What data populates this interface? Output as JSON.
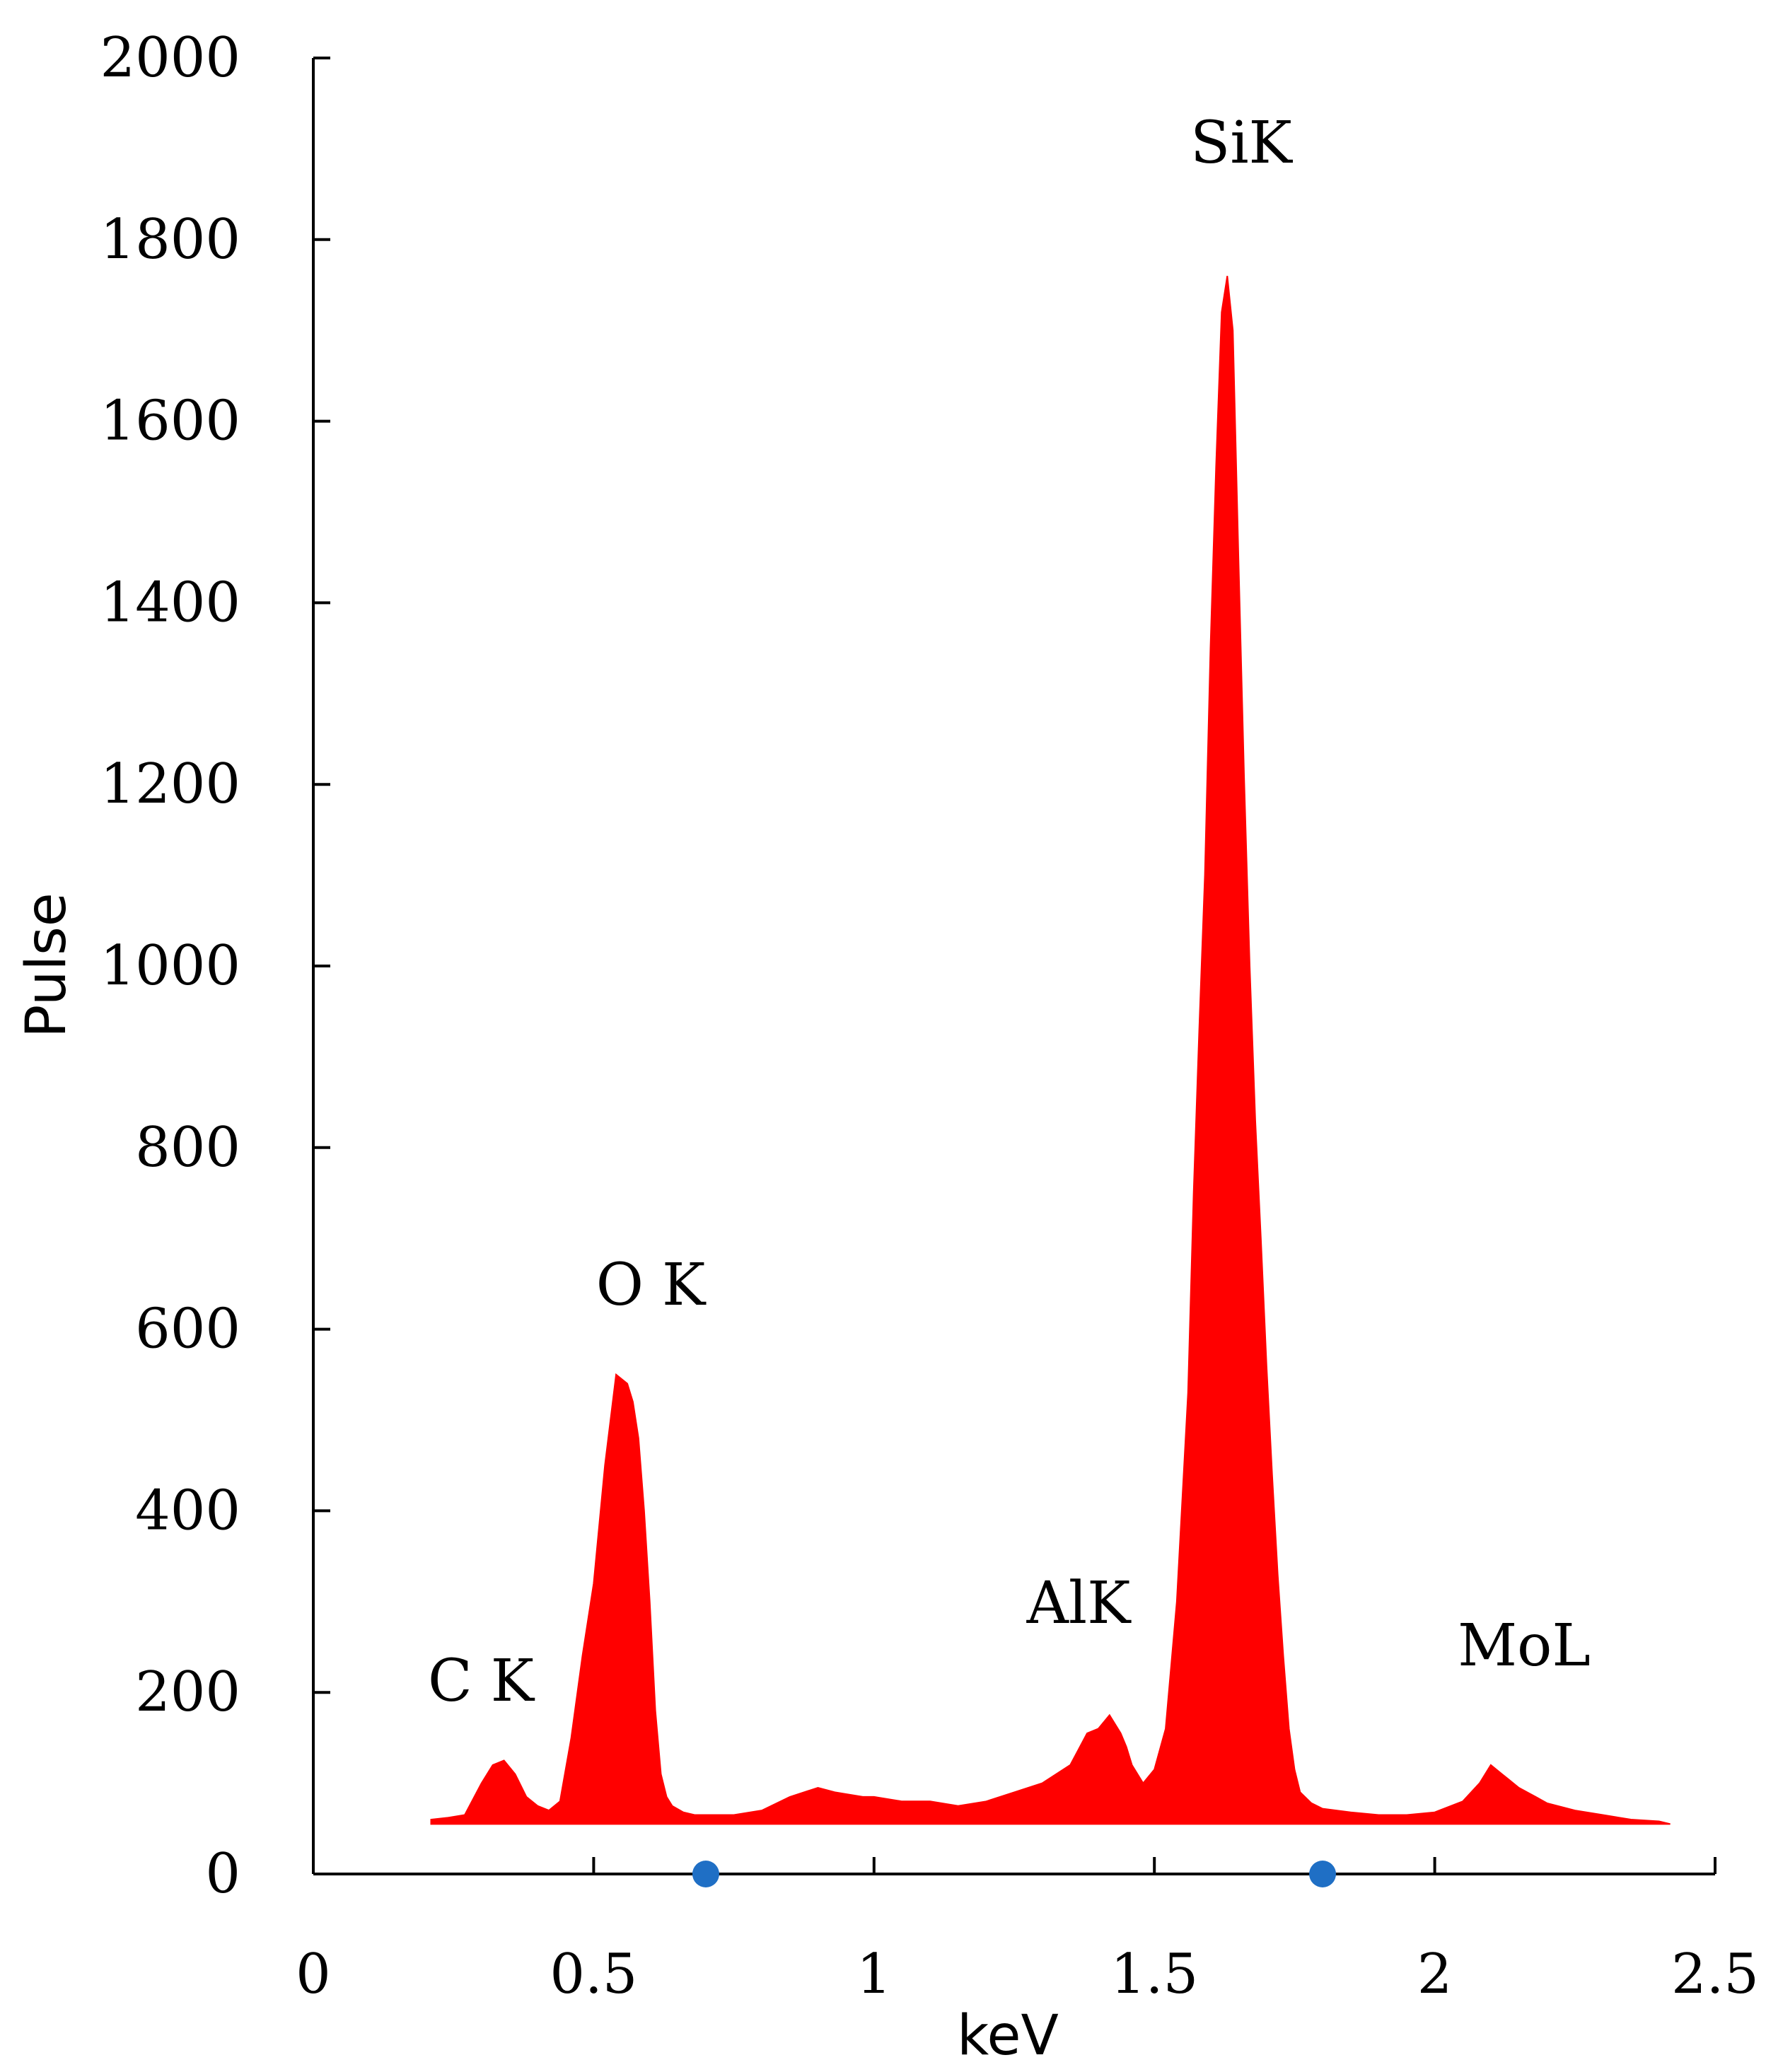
{
  "chart_data": {
    "type": "area",
    "xlabel": "keV",
    "ylabel": "Pulse",
    "xlim": [
      0,
      2.5
    ],
    "ylim": [
      0,
      2000
    ],
    "xticks": [
      "0",
      "0.5",
      "1",
      "1.5",
      "2",
      "2.5"
    ],
    "yticks": [
      "0",
      "200",
      "400",
      "600",
      "800",
      "1000",
      "1200",
      "1400",
      "1600",
      "1800",
      "2000"
    ],
    "grid": false,
    "fill_color": "#ff0000",
    "marker_color": "#1f6fc5",
    "series": [
      {
        "x": [
          0.21,
          0.24,
          0.27,
          0.3,
          0.32,
          0.34,
          0.36,
          0.38,
          0.4,
          0.42,
          0.44,
          0.46,
          0.48,
          0.5,
          0.52,
          0.54,
          0.56,
          0.57,
          0.58,
          0.59,
          0.6,
          0.61,
          0.62,
          0.63,
          0.64,
          0.66,
          0.68,
          0.7,
          0.75,
          0.8,
          0.85,
          0.9,
          0.93,
          0.95,
          0.98,
          1.0,
          1.05,
          1.1,
          1.15,
          1.2,
          1.25,
          1.3,
          1.35,
          1.38,
          1.4,
          1.42,
          1.44,
          1.45,
          1.46,
          1.48,
          1.5,
          1.52,
          1.54,
          1.56,
          1.57,
          1.58,
          1.59,
          1.6,
          1.61,
          1.62,
          1.63,
          1.64,
          1.65,
          1.66,
          1.67,
          1.68,
          1.69,
          1.7,
          1.71,
          1.72,
          1.73,
          1.74,
          1.75,
          1.76,
          1.78,
          1.8,
          1.85,
          1.9,
          1.95,
          2.0,
          2.05,
          2.08,
          2.1,
          2.12,
          2.13,
          2.15,
          2.18,
          2.2,
          2.25,
          2.3,
          2.35,
          2.4,
          2.42
        ],
        "y": [
          60,
          62,
          65,
          100,
          120,
          125,
          110,
          85,
          75,
          70,
          80,
          150,
          240,
          320,
          450,
          550,
          540,
          520,
          480,
          400,
          300,
          180,
          110,
          85,
          75,
          68,
          65,
          65,
          65,
          70,
          85,
          95,
          90,
          88,
          85,
          85,
          80,
          80,
          75,
          80,
          90,
          100,
          120,
          155,
          160,
          175,
          155,
          140,
          120,
          100,
          115,
          160,
          300,
          530,
          750,
          930,
          1100,
          1350,
          1550,
          1720,
          1760,
          1700,
          1450,
          1210,
          1000,
          830,
          700,
          560,
          440,
          330,
          240,
          160,
          115,
          90,
          78,
          72,
          68,
          65,
          65,
          68,
          80,
          100,
          120,
          110,
          105,
          95,
          85,
          78,
          70,
          65,
          60,
          58,
          55
        ]
      }
    ],
    "annotations": [
      "C K",
      "O K",
      "AlK",
      "SiK",
      "MoL"
    ],
    "markers_x": [
      0.7,
      1.8
    ]
  }
}
